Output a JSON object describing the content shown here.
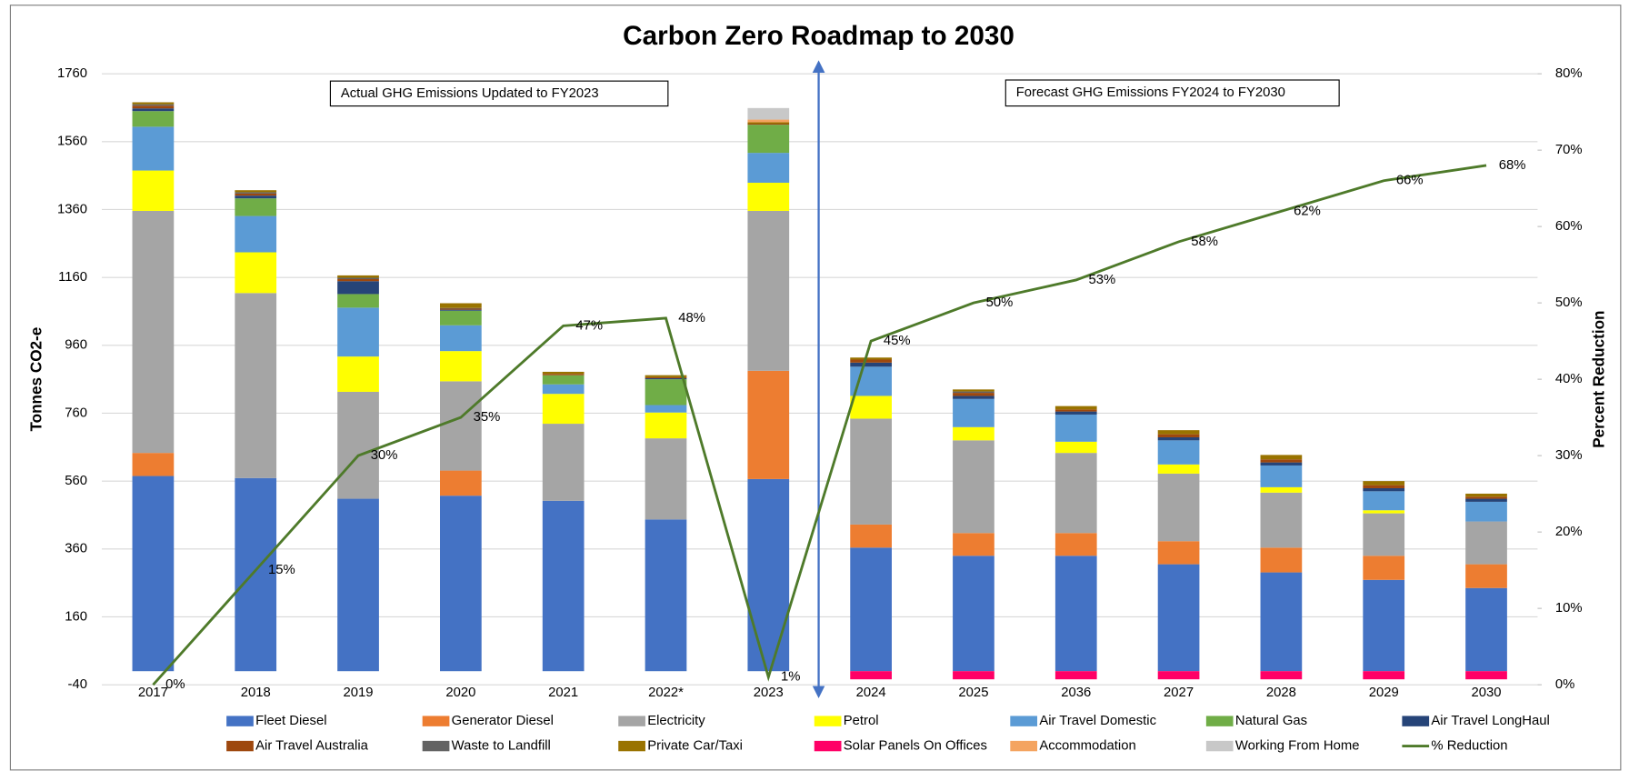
{
  "chart_data": {
    "type": "bar",
    "stacked": true,
    "title": "Carbon Zero Roadmap to 2030",
    "y_label": "Tonnes CO2-e",
    "y2_label": "Percent Reduction",
    "annotations": [
      "Actual GHG Emissions Updated to FY2023",
      "Forecast GHG Emissions FY2024 to FY2030"
    ],
    "categories": [
      "2017",
      "2018",
      "2019",
      "2020",
      "2021",
      "2022*",
      "2023",
      "2024",
      "2025",
      "2036",
      "2027",
      "2028",
      "2029",
      "2030"
    ],
    "ylim": [
      -40,
      1760
    ],
    "yticks": [
      -40,
      160,
      360,
      560,
      760,
      960,
      1160,
      1360,
      1560,
      1760
    ],
    "y2lim": [
      0,
      80
    ],
    "y2ticks": [
      {
        "value": 0,
        "label": "0%"
      },
      {
        "value": 10,
        "label": "10%"
      },
      {
        "value": 20,
        "label": "20%"
      },
      {
        "value": 30,
        "label": "30%"
      },
      {
        "value": 40,
        "label": "40%"
      },
      {
        "value": 50,
        "label": "50%"
      },
      {
        "value": 60,
        "label": "60%"
      },
      {
        "value": 70,
        "label": "70%"
      },
      {
        "value": 80,
        "label": "80%"
      }
    ],
    "grid": true,
    "legend": "bottom",
    "series": [
      {
        "name": "Fleet Diesel",
        "color": "#4472c4",
        "values": [
          575,
          569,
          508,
          517,
          502,
          447,
          566,
          364,
          340,
          340,
          315,
          291,
          269,
          245
        ]
      },
      {
        "name": "Generator Diesel",
        "color": "#ed7d31",
        "values": [
          68,
          0,
          0,
          74,
          0,
          0,
          319,
          68,
          67,
          67,
          68,
          73,
          71,
          70
        ]
      },
      {
        "name": "Electricity",
        "color": "#a5a5a5",
        "values": [
          713,
          545,
          315,
          263,
          227,
          239,
          471,
          312,
          273,
          236,
          199,
          162,
          125,
          126
        ]
      },
      {
        "name": "Petrol",
        "color": "#ffff00",
        "values": [
          119,
          120,
          104,
          89,
          88,
          76,
          83,
          67,
          39,
          33,
          27,
          16,
          9,
          0
        ]
      },
      {
        "name": "Air Travel Domestic",
        "color": "#5b9bd5",
        "values": [
          129,
          107,
          144,
          76,
          28,
          22,
          88,
          86,
          83,
          80,
          71,
          64,
          56,
          58
        ]
      },
      {
        "name": "Natural Gas",
        "color": "#70ad47",
        "values": [
          46,
          52,
          40,
          43,
          27,
          76,
          83,
          0,
          0,
          0,
          0,
          0,
          0,
          0
        ]
      },
      {
        "name": "Air Travel LongHaul",
        "color": "#264478",
        "values": [
          8,
          8,
          38,
          3,
          0,
          3,
          0,
          12,
          9,
          9,
          9,
          9,
          9,
          9
        ]
      },
      {
        "name": "Air Travel Australia",
        "color": "#9e480e",
        "values": [
          8,
          6,
          6,
          3,
          4,
          3,
          3,
          9,
          9,
          6,
          9,
          9,
          9,
          6
        ]
      },
      {
        "name": "Waste to Landfill",
        "color": "#636363",
        "values": [
          4,
          4,
          4,
          2,
          0,
          0,
          0,
          0,
          4,
          0,
          0,
          0,
          0,
          0
        ]
      },
      {
        "name": "Private Car/Taxi",
        "color": "#997300",
        "values": [
          6,
          6,
          7,
          14,
          6,
          6,
          4,
          6,
          6,
          10,
          12,
          13,
          12,
          9
        ]
      },
      {
        "name": "Solar Panels On Offices",
        "color": "#ff0066",
        "values": [
          0,
          0,
          0,
          0,
          0,
          0,
          0,
          -24,
          -24,
          -24,
          -24,
          -24,
          -24,
          -24
        ]
      },
      {
        "name": "Accommodation",
        "color": "#f4a460",
        "values": [
          0,
          0,
          0,
          0,
          0,
          0,
          8,
          0,
          0,
          0,
          0,
          0,
          0,
          0
        ]
      },
      {
        "name": "Working From Home",
        "color": "#c8c8c8",
        "values": [
          0,
          0,
          0,
          0,
          0,
          0,
          34,
          0,
          0,
          0,
          0,
          0,
          0,
          0
        ]
      },
      {
        "name": "% Reduction",
        "color": "#4e7a2a",
        "type": "line",
        "axis": "y2",
        "values": [
          0,
          15,
          30,
          35,
          47,
          48,
          1,
          45,
          50,
          53,
          58,
          62,
          66,
          68
        ],
        "value_labels": [
          "0%",
          "15%",
          "30%",
          "35%",
          "47%",
          "48%",
          "1%",
          "45%",
          "50%",
          "53%",
          "58%",
          "62%",
          "66%",
          "68%"
        ]
      }
    ]
  }
}
